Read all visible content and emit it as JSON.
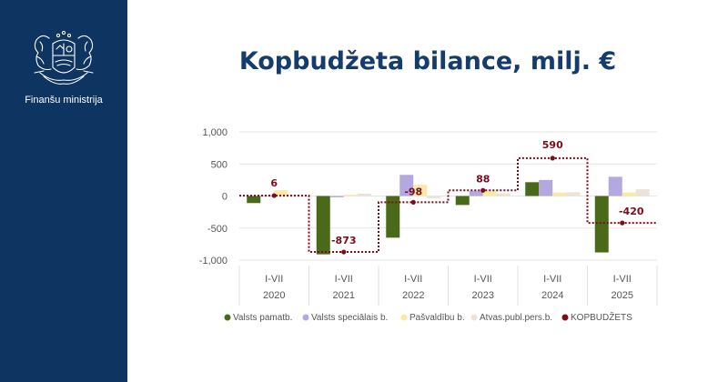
{
  "sidebar": {
    "org_name": "Finanšu ministrija",
    "logo_icon": "coat-of-arms-icon",
    "background": "#0e3462"
  },
  "title": "Kopbudžeta bilance, milj. €",
  "chart_data": {
    "type": "bar",
    "title": "",
    "xlabel": "",
    "ylabel": "",
    "ylim": [
      -1000,
      1000
    ],
    "yticks": [
      -1000,
      -500,
      0,
      500,
      1000
    ],
    "ytick_labels": [
      "-1,000",
      "-500",
      "0",
      "500",
      "1,000"
    ],
    "grid": true,
    "legend_position": "bottom",
    "categories": [
      {
        "period": "I-VII",
        "year": "2020"
      },
      {
        "period": "I-VII",
        "year": "2021"
      },
      {
        "period": "I-VII",
        "year": "2022"
      },
      {
        "period": "I-VII",
        "year": "2023"
      },
      {
        "period": "I-VII",
        "year": "2024"
      },
      {
        "period": "I-VII",
        "year": "2025"
      }
    ],
    "series": [
      {
        "name": "Valsts pamatb.",
        "color": "#4a6a1a",
        "values": [
          -110,
          -910,
          -650,
          -140,
          215,
          -880
        ]
      },
      {
        "name": "Valsts speciālais b.",
        "color": "#b3a9e0",
        "values": [
          10,
          -20,
          330,
          80,
          250,
          300
        ]
      },
      {
        "name": "Pašvaldību b.",
        "color": "#fde9a5",
        "values": [
          90,
          20,
          175,
          75,
          55,
          55
        ]
      },
      {
        "name": "Atvas.publ.pers.b.",
        "color": "#ece2d8",
        "values": [
          15,
          35,
          -35,
          40,
          60,
          105
        ]
      }
    ],
    "total": {
      "name": "KOPBUDŽETS",
      "color": "#7a0c1c",
      "values": [
        6,
        -873,
        -98,
        88,
        590,
        -420
      ],
      "labels": [
        "6",
        "-873",
        "-98",
        "88",
        "590",
        "-420"
      ]
    }
  }
}
